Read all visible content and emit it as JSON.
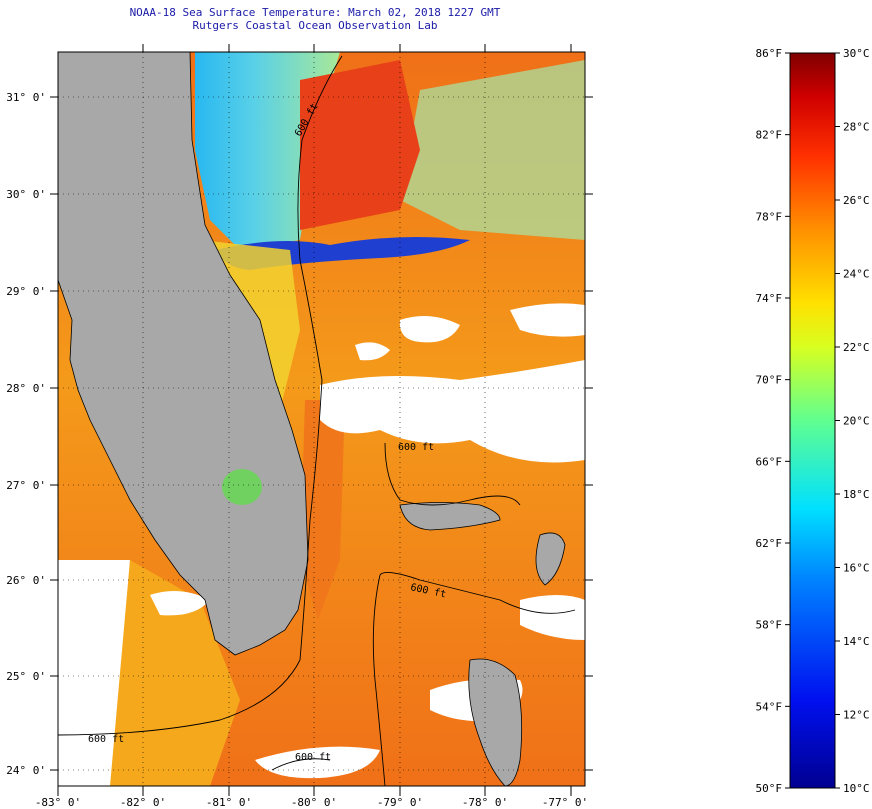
{
  "title": {
    "line1": "NOAA-18 Sea Surface Temperature:  March 02, 2018 1227 GMT",
    "line2": "Rutgers Coastal Ocean Observation Lab"
  },
  "map": {
    "region": "Florida Straits / Bahamas",
    "lat_labels": [
      "31° 0'",
      "30° 0'",
      "29° 0'",
      "28° 0'",
      "27° 0'",
      "26° 0'",
      "25° 0'",
      "24° 0'"
    ],
    "lon_labels": [
      "-83° 0'",
      "-82° 0'",
      "-81° 0'",
      "-80° 0'",
      "-79° 0'",
      "-78° 0'",
      "-77° 0'"
    ],
    "contour_label": "600 ft",
    "colors": {
      "land": "#a8a8a8",
      "cloud": "#ffffff",
      "warm_water": "#f07a18",
      "hot_water": "#e0401a",
      "cold_water": "#1f3fd0",
      "cool_water": "#38c8e0",
      "mid_water": "#f0d030"
    }
  },
  "colorbar": {
    "fahrenheit": [
      "86°F",
      "82°F",
      "78°F",
      "74°F",
      "70°F",
      "66°F",
      "62°F",
      "58°F",
      "54°F",
      "50°F"
    ],
    "celsius": [
      "30°C",
      "28°C",
      "26°C",
      "24°C",
      "22°C",
      "20°C",
      "18°C",
      "16°C",
      "14°C",
      "12°C",
      "10°C"
    ],
    "range_f": [
      50,
      86
    ],
    "range_c": [
      10,
      30
    ]
  }
}
